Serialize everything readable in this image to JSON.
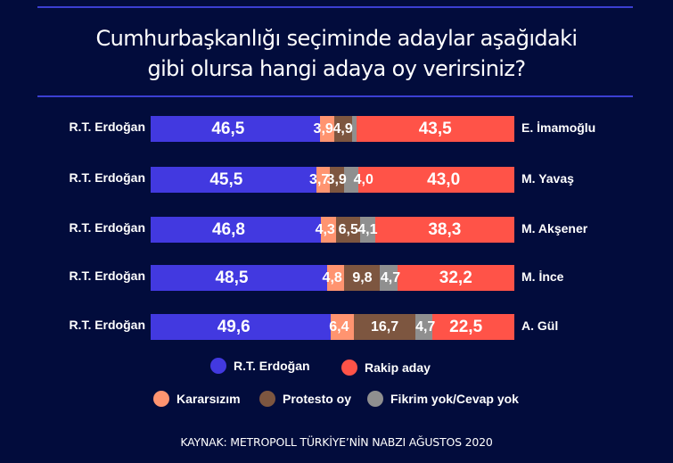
{
  "title": {
    "line1": "Cumhurbaşkanlığı seçiminde adaylar aşağıdaki",
    "line2": "gibi olursa hangi adaya oy verirsiniz?"
  },
  "colors": {
    "background": "#020c3c",
    "erdogan": "#4239e0",
    "kararsizim": "#ff9470",
    "protesto": "#7d5640",
    "fikrim_yok": "#8f8f8f",
    "rakip": "#ff5348",
    "rule": "#3b3fd2"
  },
  "rows": [
    {
      "left": "R.T. Erdoğan",
      "right": "E. İmamoğlu",
      "values": [
        "46,5",
        "3,9",
        "4,9",
        "",
        "43,5"
      ]
    },
    {
      "left": "R.T. Erdoğan",
      "right": "M. Yavaş",
      "values": [
        "45,5",
        "3,7",
        "3,9",
        "4,0",
        "43,0"
      ]
    },
    {
      "left": "R.T. Erdoğan",
      "right": "M. Akşener",
      "values": [
        "46,8",
        "4,3",
        "6,5",
        "4,1",
        "38,3"
      ]
    },
    {
      "left": "R.T. Erdoğan",
      "right": "M. İnce",
      "values": [
        "48,5",
        "4,8",
        "9,8",
        "4,7",
        "32,2"
      ]
    },
    {
      "left": "R.T. Erdoğan",
      "right": "A. Gül",
      "values": [
        "49,6",
        "6,4",
        "16,7",
        "4,7",
        "22,5"
      ]
    }
  ],
  "legend": [
    {
      "label": "R.T. Erdoğan",
      "color": "#4239e0"
    },
    {
      "label": "Rakip aday",
      "color": "#ff5348"
    },
    {
      "label": "Kararsızım",
      "color": "#ff9470"
    },
    {
      "label": "Protesto oy",
      "color": "#7d5640"
    },
    {
      "label": "Fikrim yok/Cevap yok",
      "color": "#8f8f8f"
    }
  ],
  "source": "KAYNAK: METROPOLL TÜRKİYE’NİN NABZI AĞUSTOS 2020",
  "chart_data": {
    "type": "bar",
    "orientation": "horizontal-stacked",
    "title": "Cumhurbaşkanlığı seçiminde adaylar aşağıdaki gibi olursa hangi adaya oy verirsiniz?",
    "categories": [
      "R.T. Erdoğan vs E. İmamoğlu",
      "R.T. Erdoğan vs M. Yavaş",
      "R.T. Erdoğan vs M. Akşener",
      "R.T. Erdoğan vs M. İnce",
      "R.T. Erdoğan vs A. Gül"
    ],
    "series": [
      {
        "name": "R.T. Erdoğan",
        "values": [
          46.5,
          45.5,
          46.8,
          48.5,
          49.6
        ]
      },
      {
        "name": "Kararsızım",
        "values": [
          3.9,
          3.7,
          4.3,
          4.8,
          6.4
        ]
      },
      {
        "name": "Protesto oy",
        "values": [
          4.9,
          3.9,
          6.5,
          9.8,
          16.7
        ]
      },
      {
        "name": "Fikrim yok/Cevap yok",
        "values": [
          1.2,
          4.0,
          4.1,
          4.7,
          4.7
        ]
      },
      {
        "name": "Rakip aday",
        "values": [
          43.5,
          43.0,
          38.3,
          32.2,
          22.5
        ]
      }
    ],
    "xlabel": "",
    "ylabel": "",
    "xlim": [
      0,
      100
    ],
    "grid": false,
    "legend_position": "bottom",
    "source": "KAYNAK: METROPOLL TÜRKİYE’NİN NABZI AĞUSTOS 2020"
  }
}
